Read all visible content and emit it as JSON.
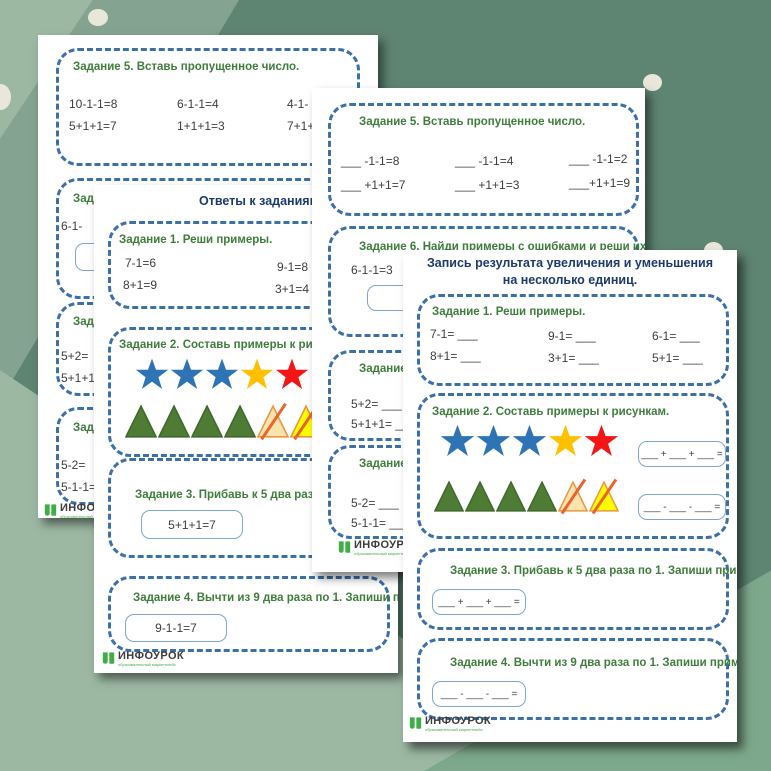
{
  "colors": {
    "dash_border": "#3b70a8",
    "answer_box_border": "#7fa6cf",
    "task_title_green": "#3e7d3c",
    "page_title_navy": "#1c3a6b",
    "math_text": "#3d3d3d",
    "star_blue": "#2e74b5",
    "star_yellow": "#ffc000",
    "star_red": "#f41616",
    "tri_green": "#4e7c35",
    "tri_green_stroke": "#41682c",
    "tri_cream": "#fbe3ad",
    "tri_yellow": "#fdfd00",
    "tri_orange_stroke": "#e9973e",
    "slash_orange": "#e8662e",
    "logo_green": "#3fae49",
    "logo_text": "#3c3c3c",
    "bg_base": "#5e8472",
    "bg_mid": "#84a391",
    "bg_light": "#9cb8a3",
    "bg_corner": "#7da88b",
    "dot_cream": "#e9e7d9"
  },
  "logo": {
    "brand": "ИНФОУРОК",
    "tagline": "образовательный маркетплейс"
  },
  "page1": {
    "task5": {
      "title": "Задание 5. Вставь пропущенное число.",
      "row1": [
        "10-1-1=8",
        "6-1-1=4",
        "4-1-"
      ],
      "row2": [
        "5+1+1=7",
        "1+1+1=3",
        "7+1+"
      ]
    },
    "task6": {
      "title": "Задание",
      "item": "6-1-",
      "answer": ""
    },
    "task7": {
      "title": "Задание",
      "items": [
        "5+2=",
        "5+1+1"
      ]
    },
    "task8": {
      "title": "Задание",
      "items": [
        "5-2=",
        "5-1-1="
      ]
    }
  },
  "page2": {
    "task5": {
      "title": "Задание 5. Вставь пропущенное число.",
      "row1": [
        "___ -1-1=8",
        "___ -1-1=4",
        "___ -1-1=2"
      ],
      "row2": [
        "___ +1+1=7",
        "___ +1+1=3",
        "___+1+1=9"
      ]
    },
    "task6": {
      "title": "Задание 6. Найди примеры с ошибками и реши их.",
      "item": "6-1-1=3",
      "answer": ""
    },
    "task7": {
      "title": "Задание 7.",
      "items": [
        "5+2= ___",
        "5+1+1= ___"
      ]
    },
    "task8": {
      "title": "Задание",
      "items": [
        "5-2= ___",
        "5-1-1= ___"
      ]
    }
  },
  "page3": {
    "title": "Ответы к заданиям.",
    "task1": {
      "title": "Задание 1. Реши примеры.",
      "col1": [
        "7-1=6",
        "8+1=9"
      ],
      "col2": [
        "9-1=8",
        "3+1=4"
      ]
    },
    "task2": {
      "title": "Задание 2. Составь примеры к рису",
      "stars": [
        "blue",
        "blue",
        "blue",
        "yellow",
        "red"
      ],
      "triangles": [
        "green",
        "green",
        "green",
        "green",
        "cream-crossed",
        "yellow-crossed"
      ],
      "answer1": "",
      "answer2": ""
    },
    "task3": {
      "title": "Задание 3. Прибавь к 5 два раза по",
      "answer": "5+1+1=7"
    },
    "task4": {
      "title": "Задание 4. Вычти из 9 два раза по 1. Запиши прим",
      "answer": "9-1-1=7"
    }
  },
  "page4": {
    "title_line1": "Запись результата увеличения и уменьшения",
    "title_line2": "на несколько единиц.",
    "task1": {
      "title": "Задание 1. Реши примеры.",
      "col1": [
        "7-1= ___",
        "8+1= ___"
      ],
      "col2": [
        "9-1= ___",
        "3+1= ___"
      ],
      "col3": [
        "6-1= ___",
        "5+1= ___"
      ]
    },
    "task2": {
      "title": "Задание 2. Составь примеры к рисункам.",
      "stars": [
        "blue",
        "blue",
        "blue",
        "yellow",
        "red"
      ],
      "triangles": [
        "green",
        "green",
        "green",
        "green",
        "cream-crossed",
        "yellow-crossed"
      ],
      "answer_add": "___ + ___ + ___ =",
      "answer_sub": "___ - ___ - ___ ="
    },
    "task3": {
      "title": "Задание 3. Прибавь к 5 два раза по 1. Запиши пример.",
      "answer": "___ + ___ + ___ ="
    },
    "task4": {
      "title": "Задание 4. Вычти из 9 два раза по 1. Запиши пример.",
      "answer": "___ - ___ - ___ ="
    }
  }
}
